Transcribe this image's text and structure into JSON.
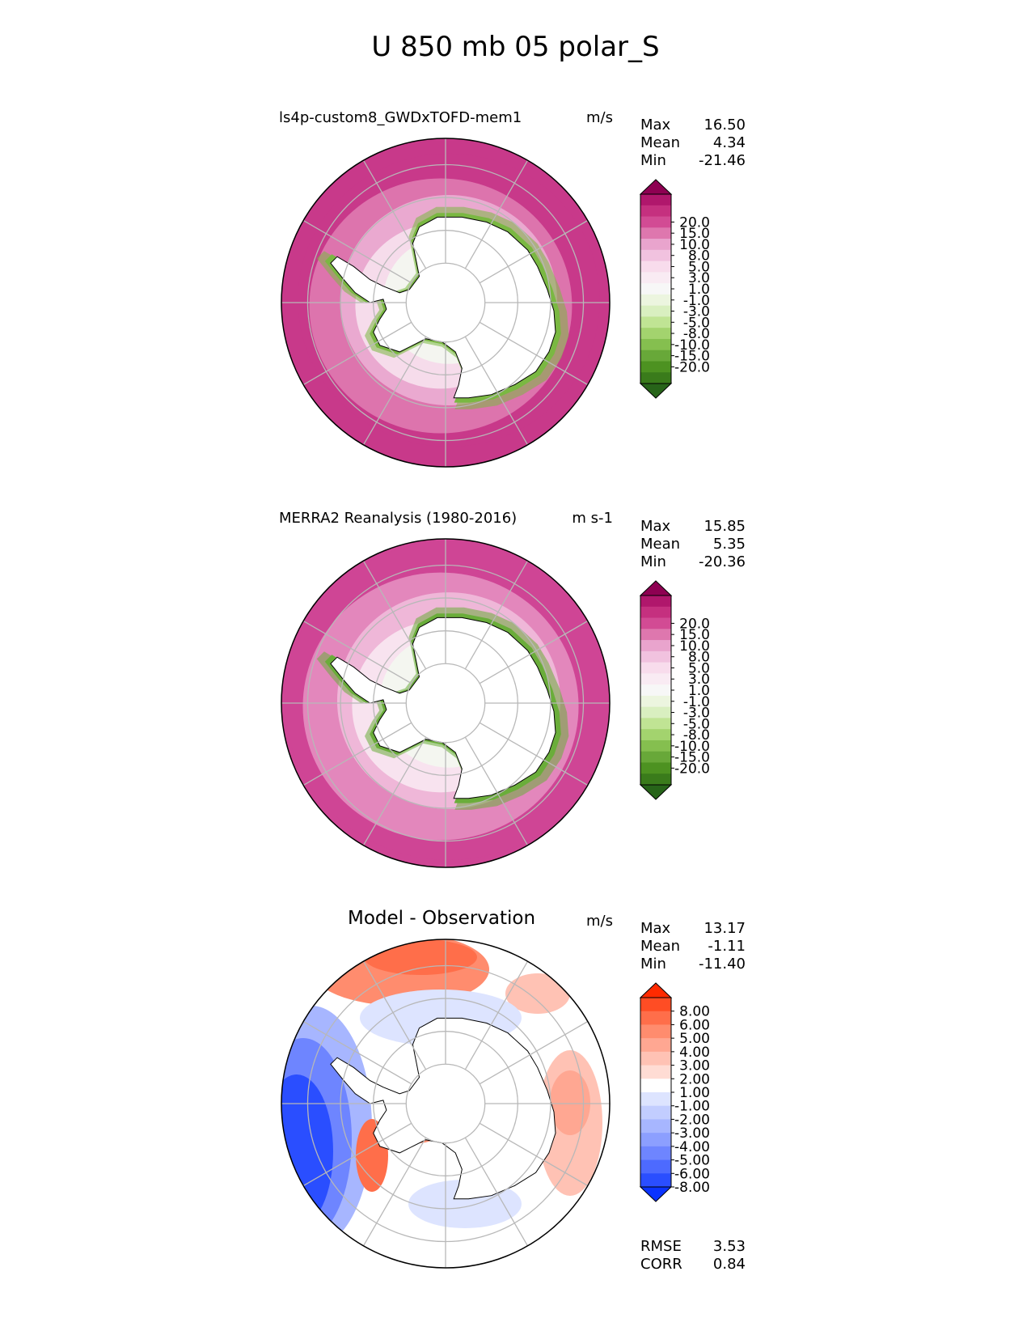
{
  "figure": {
    "title": "U 850 mb 05 polar_S"
  },
  "panels": [
    {
      "id": "model",
      "title": "ls4p-custom8_GWDxTOFD-mem1",
      "units": "m/s",
      "stats": [
        {
          "label": "Max",
          "value": "16.50"
        },
        {
          "label": "Mean",
          "value": "4.34"
        },
        {
          "label": "Min",
          "value": "-21.46"
        }
      ],
      "colorbar": {
        "levels": [
          "20.0",
          "15.0",
          "10.0",
          "8.0",
          "5.0",
          "3.0",
          "1.0",
          "-1.0",
          "-3.0",
          "-5.0",
          "-8.0",
          "-10.0",
          "-15.0",
          "-20.0"
        ],
        "colors": [
          "#8e0152",
          "#b0176c",
          "#c5307f",
          "#d24b94",
          "#de77ae",
          "#e9a4cd",
          "#f1c2df",
          "#f8dcec",
          "#f9ebf3",
          "#f7f7f7",
          "#ecf5df",
          "#d9efc0",
          "#c0e494",
          "#a3d36e",
          "#85bf4f",
          "#68a839",
          "#4d9221",
          "#3a7b1b",
          "#276419"
        ]
      },
      "map": {
        "type": "polar_S",
        "rings": [
          {
            "r": 0.92,
            "color": "#c8398a"
          },
          {
            "r": 0.8,
            "color": "#dd74ad"
          },
          {
            "r": 0.66,
            "color": "#eaa9d0"
          },
          {
            "r": 0.52,
            "color": "#f6dceb"
          },
          {
            "r": 0.4,
            "color": "#f4f5f0"
          }
        ],
        "coast_band": "#7ab842",
        "interior": "#ffffff"
      }
    },
    {
      "id": "obs",
      "title": "MERRA2 Reanalysis (1980-2016)",
      "units": "m s-1",
      "stats": [
        {
          "label": "Max",
          "value": "15.85"
        },
        {
          "label": "Mean",
          "value": "5.35"
        },
        {
          "label": "Min",
          "value": "-20.36"
        }
      ],
      "colorbar": {
        "levels": [
          "20.0",
          "15.0",
          "10.0",
          "8.0",
          "5.0",
          "3.0",
          "1.0",
          "-1.0",
          "-3.0",
          "-5.0",
          "-8.0",
          "-10.0",
          "-15.0",
          "-20.0"
        ],
        "colors": [
          "#8e0152",
          "#b0176c",
          "#c5307f",
          "#d24b94",
          "#de77ae",
          "#e9a4cd",
          "#f1c2df",
          "#f8dcec",
          "#f9ebf3",
          "#f7f7f7",
          "#ecf5df",
          "#d9efc0",
          "#c0e494",
          "#a3d36e",
          "#85bf4f",
          "#68a839",
          "#4d9221",
          "#3a7b1b",
          "#276419"
        ]
      },
      "map": {
        "type": "polar_S",
        "rings": [
          {
            "r": 1.0,
            "color": "#cf4595"
          },
          {
            "r": 0.84,
            "color": "#e387bc"
          },
          {
            "r": 0.68,
            "color": "#efb7d8"
          },
          {
            "r": 0.54,
            "color": "#f8e3ef"
          },
          {
            "r": 0.42,
            "color": "#f4f6f0"
          }
        ],
        "coast_band": "#6aad3a",
        "interior": "#ffffff"
      }
    },
    {
      "id": "diff",
      "title": "Model - Observation",
      "units": "m/s",
      "stats": [
        {
          "label": "Max",
          "value": "13.17"
        },
        {
          "label": "Mean",
          "value": "-1.11"
        },
        {
          "label": "Min",
          "value": "-11.40"
        }
      ],
      "extra_stats": [
        {
          "label": "RMSE",
          "value": "3.53"
        },
        {
          "label": "CORR",
          "value": "0.84"
        }
      ],
      "colorbar": {
        "levels": [
          "8.00",
          "6.00",
          "5.00",
          "4.00",
          "3.00",
          "2.00",
          "1.00",
          "-1.00",
          "-2.00",
          "-3.00",
          "-4.00",
          "-5.00",
          "-6.00",
          "-8.00"
        ],
        "colors": [
          "#ff2a00",
          "#ff4d24",
          "#ff6e4a",
          "#ff8c6e",
          "#ffa792",
          "#ffc2b4",
          "#ffdcd4",
          "#ffffff",
          "#dde4ff",
          "#c2cdff",
          "#a7b6ff",
          "#8c9fff",
          "#6e85ff",
          "#4d6aff",
          "#2a4eff",
          "#0a33ff"
        ]
      },
      "map": {
        "type": "polar_S",
        "background": "#ffffff",
        "interior": "#ffffff"
      }
    }
  ]
}
